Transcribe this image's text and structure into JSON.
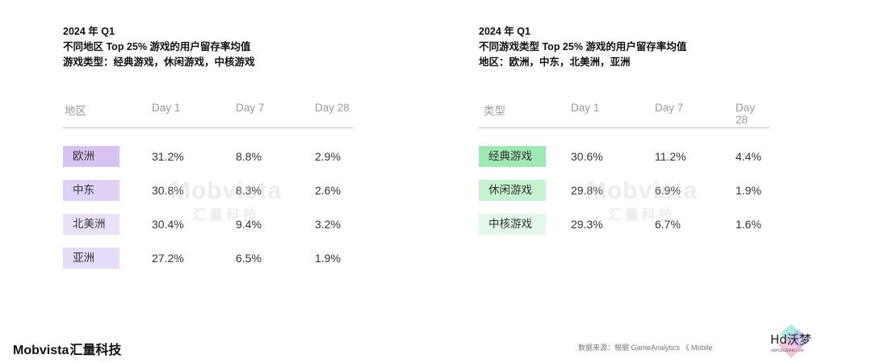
{
  "left": {
    "header": [
      "2024 年 Q1",
      "不同地区 Top 25% 游戏的用户留存率均值",
      "游戏类型：经典游戏，休闲游戏，中核游戏"
    ],
    "columns": [
      "地区",
      "Day 1",
      "Day 7",
      "Day 28"
    ],
    "rows": [
      {
        "label": "欧洲",
        "d1": "31.2%",
        "d7": "8.8%",
        "d28": "2.9%",
        "color": "#d7c2f2"
      },
      {
        "label": "中东",
        "d1": "30.8%",
        "d7": "8.3%",
        "d28": "2.6%",
        "color": "#e0d2f6"
      },
      {
        "label": "北美洲",
        "d1": "30.4%",
        "d7": "9.4%",
        "d28": "3.2%",
        "color": "#ebe2fa"
      },
      {
        "label": "亚洲",
        "d1": "27.2%",
        "d7": "6.5%",
        "d28": "1.9%",
        "color": "#e6dbf8"
      }
    ]
  },
  "right": {
    "header": [
      "2024 年 Q1",
      "不同游戏类型 Top 25% 游戏的用户留存率均值",
      "地区：欧洲，中东，北美洲，亚洲"
    ],
    "columns": [
      "类型",
      "Day 1",
      "Day 7",
      "Day 28"
    ],
    "rows": [
      {
        "label": "经典游戏",
        "d1": "30.6%",
        "d7": "11.2%",
        "d28": "4.4%",
        "color": "#9ee8b4"
      },
      {
        "label": "休闲游戏",
        "d1": "29.8%",
        "d7": "6.9%",
        "d28": "1.9%",
        "color": "#c6f2d2"
      },
      {
        "label": "中核游戏",
        "d1": "29.3%",
        "d7": "6.7%",
        "d28": "1.6%",
        "color": "#e2f8e8"
      }
    ]
  },
  "watermark": {
    "main": "Mobvista",
    "sub": "汇量科技"
  },
  "footer": {
    "logo_latin": "Mobvista",
    "logo_cn": "汇量科技",
    "source": "数据来源：根据 GameAnalytics 《 Mobile",
    "hd_logo": "Hd沃梦",
    "hd_logo_sub": "HDPODCEDAM.COM"
  }
}
